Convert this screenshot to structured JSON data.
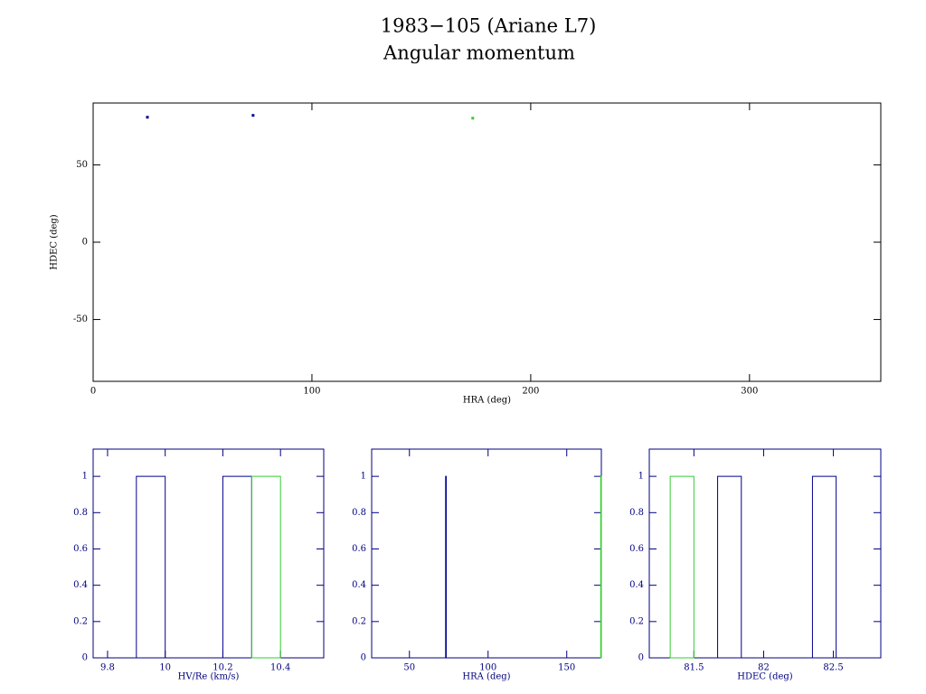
{
  "chart_data": [
    {
      "type": "scatter",
      "title": "1983−105 (Ariane L7)",
      "subtitle": "Angular momentum",
      "xlabel": "HRA (deg)",
      "ylabel": "HDEC (deg)",
      "axis_color": "#000000",
      "xlim": [
        0,
        360
      ],
      "ylim": [
        -90,
        90
      ],
      "xticks": [
        0,
        100,
        200,
        300
      ],
      "yticks": [
        -50,
        0,
        50
      ],
      "series": [
        {
          "color": "#0000a0",
          "x": [
            24.8,
            73.1
          ],
          "values": [
            80.8,
            82
          ]
        },
        {
          "color": "#33cc33",
          "x": [
            173.5
          ],
          "values": [
            80.2
          ]
        }
      ]
    },
    {
      "type": "histogram",
      "xlabel": "HV/Re (km/s)",
      "axis_color": "#000080",
      "xlim": [
        9.75,
        10.55
      ],
      "ylim": [
        0,
        1.15
      ],
      "xticks": [
        9.8,
        10,
        10.2,
        10.4
      ],
      "yticks": [
        0,
        0.2,
        0.4,
        0.6,
        0.8,
        1
      ],
      "series": [
        {
          "color": "#000090",
          "bins": [
            9.9,
            10,
            10.1,
            10.2,
            10.3
          ],
          "values": [
            1,
            0,
            0,
            1
          ]
        },
        {
          "color": "#33cc33",
          "bins": [
            10.3,
            10.4
          ],
          "values": [
            1
          ]
        }
      ]
    },
    {
      "type": "histogram",
      "xlabel": "HRA (deg)",
      "axis_color": "#000080",
      "xlim": [
        26,
        172
      ],
      "ylim": [
        0,
        1.15
      ],
      "xticks": [
        50,
        100,
        150
      ],
      "yticks": [
        0,
        0.2,
        0.4,
        0.6,
        0.8,
        1
      ],
      "series": [
        {
          "color": "#000090",
          "bins": [
            73,
            73.4
          ],
          "values": [
            1
          ]
        },
        {
          "color": "#33cc33",
          "bins": [
            171.6,
            172
          ],
          "values": [
            1
          ]
        }
      ]
    },
    {
      "type": "histogram",
      "xlabel": "HDEC (deg)",
      "axis_color": "#000080",
      "xlim": [
        81.18,
        82.84
      ],
      "ylim": [
        0,
        1.15
      ],
      "xticks": [
        81.5,
        82,
        82.5
      ],
      "yticks": [
        0,
        0.2,
        0.4,
        0.6,
        0.8,
        1
      ],
      "series": [
        {
          "color": "#000090",
          "bins": [
            81.67,
            81.84,
            82.01,
            82.18,
            82.35,
            82.52
          ],
          "values": [
            1,
            0,
            0,
            0,
            1
          ]
        },
        {
          "color": "#33cc33",
          "bins": [
            81.33,
            81.5
          ],
          "values": [
            1
          ]
        }
      ]
    }
  ]
}
